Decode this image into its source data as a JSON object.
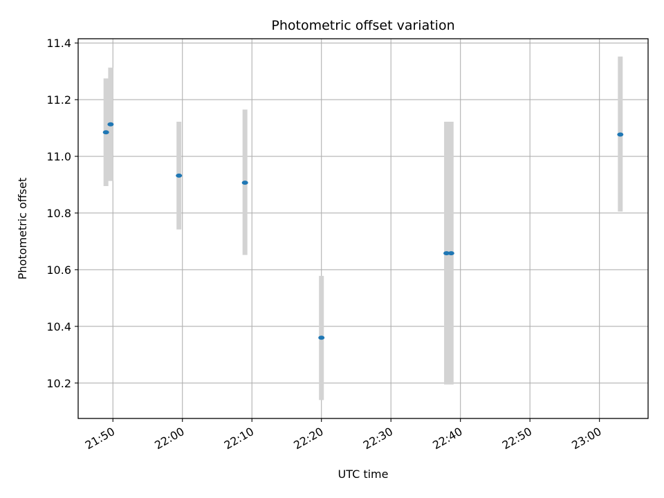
{
  "chart_data": {
    "type": "scatter",
    "title": "Photometric offset variation",
    "xlabel": "UTC time",
    "ylabel": "Photometric offset",
    "xlim": [
      "21:45",
      "23:07"
    ],
    "ylim": [
      10.075,
      11.415
    ],
    "x_ticks": [
      "21:50",
      "22:00",
      "22:10",
      "22:20",
      "22:30",
      "22:40",
      "22:50",
      "23:00"
    ],
    "y_ticks": [
      10.2,
      10.4,
      10.6,
      10.8,
      11.0,
      11.2,
      11.4
    ],
    "y_tick_labels": [
      "10.2",
      "10.4",
      "10.6",
      "10.8",
      "11.0",
      "11.2",
      "11.4"
    ],
    "grid": true,
    "series": [
      {
        "marker_color": "#1f77b4",
        "errorbar_color": "#d3d3d3",
        "points": [
          {
            "x": "21:49",
            "y": 11.085,
            "ymin": 10.895,
            "ymax": 11.275
          },
          {
            "x": "21:49:40",
            "y": 11.113,
            "ymin": 10.913,
            "ymax": 11.313
          },
          {
            "x": "21:59:30",
            "y": 10.932,
            "ymin": 10.742,
            "ymax": 11.122
          },
          {
            "x": "22:09",
            "y": 10.907,
            "ymin": 10.652,
            "ymax": 11.165
          },
          {
            "x": "22:20",
            "y": 10.36,
            "ymin": 10.14,
            "ymax": 10.578
          },
          {
            "x": "22:38",
            "y": 10.658,
            "ymin": 10.195,
            "ymax": 11.122
          },
          {
            "x": "22:38:40",
            "y": 10.658,
            "ymin": 10.195,
            "ymax": 11.122
          },
          {
            "x": "23:03",
            "y": 11.077,
            "ymin": 10.805,
            "ymax": 11.352
          }
        ]
      }
    ]
  }
}
